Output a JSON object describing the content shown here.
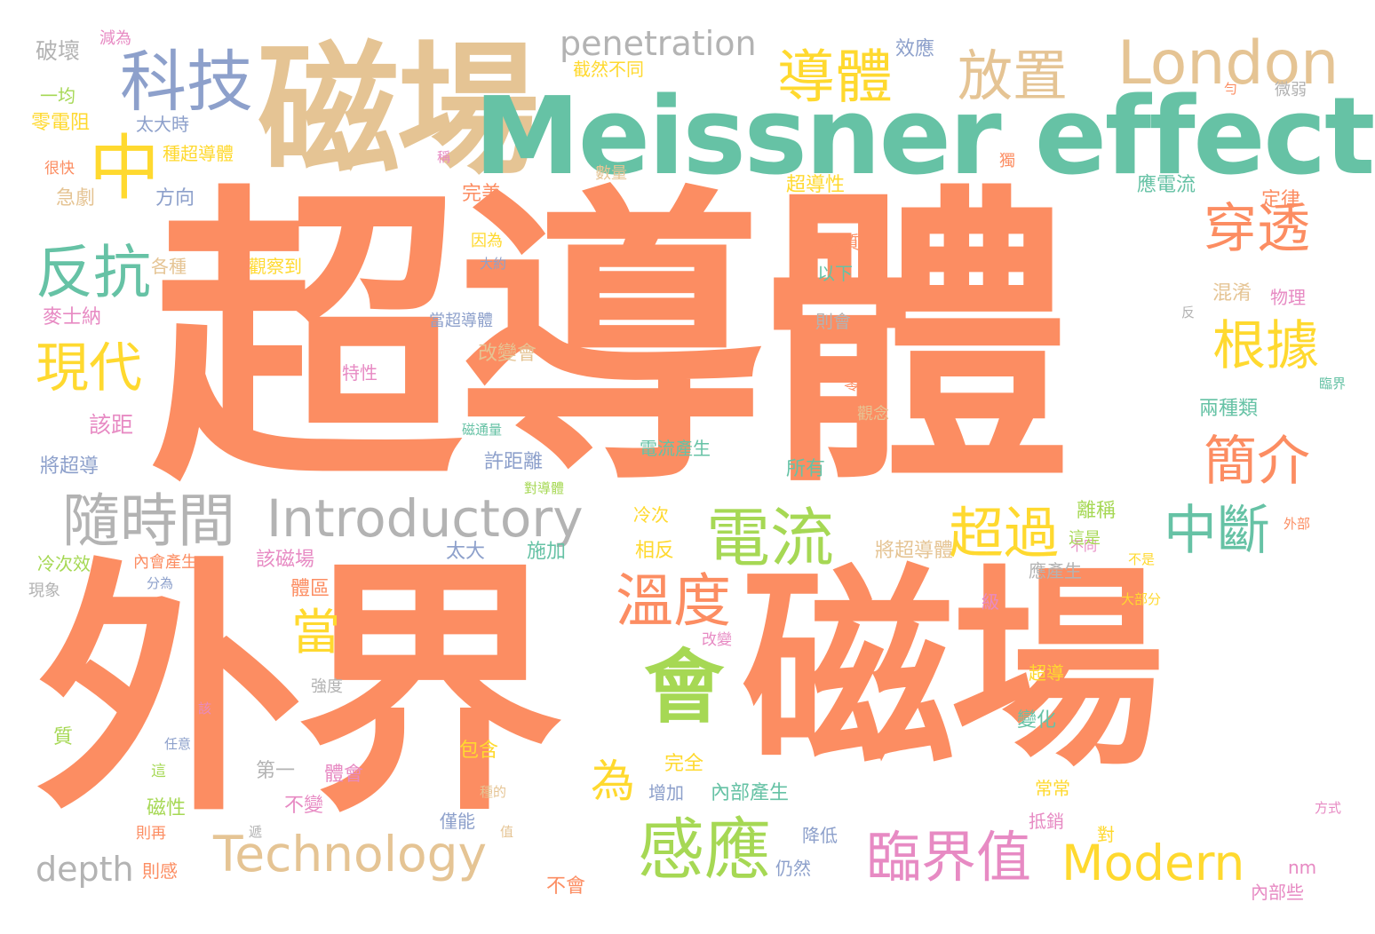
{
  "colors": {
    "orange": "#fc8d62",
    "green": "#66c2a5",
    "tan": "#e5c494",
    "blue": "#8da0cb",
    "yellow": "#ffd92f",
    "lime": "#a6d854",
    "pink": "#e78ac3",
    "gray": "#b3b3b3"
  },
  "words": [
    {
      "text": "超導體",
      "color": "orange"
    },
    {
      "text": "外界",
      "color": "orange"
    },
    {
      "text": "磁場",
      "color": "orange"
    },
    {
      "text": "磁場",
      "color": "tan"
    },
    {
      "text": "Meissner effect",
      "color": "green"
    },
    {
      "text": "科技",
      "color": "blue"
    },
    {
      "text": "中",
      "color": "yellow"
    },
    {
      "text": "penetration",
      "color": "gray"
    },
    {
      "text": "導體",
      "color": "yellow"
    },
    {
      "text": "放置",
      "color": "tan"
    },
    {
      "text": "London",
      "color": "tan"
    },
    {
      "text": "反抗",
      "color": "green"
    },
    {
      "text": "現代",
      "color": "yellow"
    },
    {
      "text": "穿透",
      "color": "orange"
    },
    {
      "text": "根據",
      "color": "yellow"
    },
    {
      "text": "簡介",
      "color": "orange"
    },
    {
      "text": "中斷",
      "color": "green"
    },
    {
      "text": "隨時間",
      "color": "gray"
    },
    {
      "text": "Introductory",
      "color": "gray"
    },
    {
      "text": "電流",
      "color": "lime"
    },
    {
      "text": "超過",
      "color": "yellow"
    },
    {
      "text": "溫度",
      "color": "orange"
    },
    {
      "text": "會",
      "color": "lime"
    },
    {
      "text": "當",
      "color": "yellow"
    },
    {
      "text": "為",
      "color": "yellow"
    },
    {
      "text": "感應",
      "color": "lime"
    },
    {
      "text": "Technology",
      "color": "tan"
    },
    {
      "text": "臨界值",
      "color": "pink"
    },
    {
      "text": "Modern",
      "color": "yellow"
    },
    {
      "text": "depth",
      "color": "gray"
    },
    {
      "text": "破壞",
      "color": "gray"
    },
    {
      "text": "減為",
      "color": "pink"
    },
    {
      "text": "效應",
      "color": "blue"
    },
    {
      "text": "截然不同",
      "color": "yellow"
    },
    {
      "text": "一均",
      "color": "lime"
    },
    {
      "text": "零電阻",
      "color": "yellow"
    },
    {
      "text": "太大時",
      "color": "blue"
    },
    {
      "text": "種超導體",
      "color": "yellow"
    },
    {
      "text": "很快",
      "color": "orange"
    },
    {
      "text": "稱",
      "color": "pink"
    },
    {
      "text": "數量",
      "color": "tan"
    },
    {
      "text": "急劇",
      "color": "tan"
    },
    {
      "text": "方向",
      "color": "blue"
    },
    {
      "text": "完美",
      "color": "orange"
    },
    {
      "text": "超導性",
      "color": "yellow"
    },
    {
      "text": "應電流",
      "color": "green"
    },
    {
      "text": "定律",
      "color": "orange"
    },
    {
      "text": "因為",
      "color": "yellow"
    },
    {
      "text": "大約",
      "color": "blue"
    },
    {
      "text": "各種",
      "color": "tan"
    },
    {
      "text": "觀察到",
      "color": "yellow"
    },
    {
      "text": "物質",
      "color": "orange"
    },
    {
      "text": "以下",
      "color": "green"
    },
    {
      "text": "混淆",
      "color": "tan"
    },
    {
      "text": "麥士納",
      "color": "pink"
    },
    {
      "text": "當超導體",
      "color": "blue"
    },
    {
      "text": "則會",
      "color": "gray"
    },
    {
      "text": "物理",
      "color": "pink"
    },
    {
      "text": "反",
      "color": "gray"
    },
    {
      "text": "改變會",
      "color": "tan"
    },
    {
      "text": "特性",
      "color": "pink"
    },
    {
      "text": "零",
      "color": "orange"
    },
    {
      "text": "臨界",
      "color": "green"
    },
    {
      "text": "觀念",
      "color": "tan"
    },
    {
      "text": "該距",
      "color": "pink"
    },
    {
      "text": "磁通量",
      "color": "green"
    },
    {
      "text": "電流產生",
      "color": "green"
    },
    {
      "text": "兩種類",
      "color": "green"
    },
    {
      "text": "將超導",
      "color": "blue"
    },
    {
      "text": "許距離",
      "color": "blue"
    },
    {
      "text": "對導體",
      "color": "lime"
    },
    {
      "text": "所有",
      "color": "green"
    },
    {
      "text": "冷次",
      "color": "yellow"
    },
    {
      "text": "離稱",
      "color": "lime"
    },
    {
      "text": "外部",
      "color": "orange"
    },
    {
      "text": "冷次效",
      "color": "lime"
    },
    {
      "text": "內會產生",
      "color": "orange"
    },
    {
      "text": "該磁場",
      "color": "pink"
    },
    {
      "text": "不同",
      "color": "pink"
    },
    {
      "text": "太大",
      "color": "blue"
    },
    {
      "text": "施加",
      "color": "green"
    },
    {
      "text": "相反",
      "color": "yellow"
    },
    {
      "text": "將超導體",
      "color": "tan"
    },
    {
      "text": "這是",
      "color": "lime"
    },
    {
      "text": "不是",
      "color": "yellow"
    },
    {
      "text": "現象",
      "color": "gray"
    },
    {
      "text": "分為",
      "color": "blue"
    },
    {
      "text": "體區",
      "color": "orange"
    },
    {
      "text": "應產生",
      "color": "gray"
    },
    {
      "text": "級",
      "color": "pink"
    },
    {
      "text": "大部分",
      "color": "yellow"
    },
    {
      "text": "改變",
      "color": "pink"
    },
    {
      "text": "超導",
      "color": "yellow"
    },
    {
      "text": "強度",
      "color": "gray"
    },
    {
      "text": "質",
      "color": "lime"
    },
    {
      "text": "該",
      "color": "pink"
    },
    {
      "text": "任意",
      "color": "blue"
    },
    {
      "text": "包含",
      "color": "yellow"
    },
    {
      "text": "變化",
      "color": "green"
    },
    {
      "text": "完全",
      "color": "yellow"
    },
    {
      "text": "第一",
      "color": "gray"
    },
    {
      "text": "體會",
      "color": "pink"
    },
    {
      "text": "這",
      "color": "lime"
    },
    {
      "text": "種的",
      "color": "tan"
    },
    {
      "text": "增加",
      "color": "blue"
    },
    {
      "text": "內部產生",
      "color": "green"
    },
    {
      "text": "常常",
      "color": "yellow"
    },
    {
      "text": "磁性",
      "color": "lime"
    },
    {
      "text": "不變",
      "color": "pink"
    },
    {
      "text": "則再",
      "color": "orange"
    },
    {
      "text": "僅能",
      "color": "blue"
    },
    {
      "text": "遞",
      "color": "gray"
    },
    {
      "text": "值",
      "color": "tan"
    },
    {
      "text": "降低",
      "color": "blue"
    },
    {
      "text": "抵銷",
      "color": "pink"
    },
    {
      "text": "對",
      "color": "yellow"
    },
    {
      "text": "方式",
      "color": "pink"
    },
    {
      "text": "則感",
      "color": "orange"
    },
    {
      "text": "不會",
      "color": "orange"
    },
    {
      "text": "仍然",
      "color": "blue"
    },
    {
      "text": "nm",
      "color": "pink"
    },
    {
      "text": "內部些",
      "color": "pink"
    },
    {
      "text": "勻",
      "color": "orange"
    },
    {
      "text": "微弱",
      "color": "gray"
    },
    {
      "text": "獨",
      "color": "orange"
    }
  ]
}
